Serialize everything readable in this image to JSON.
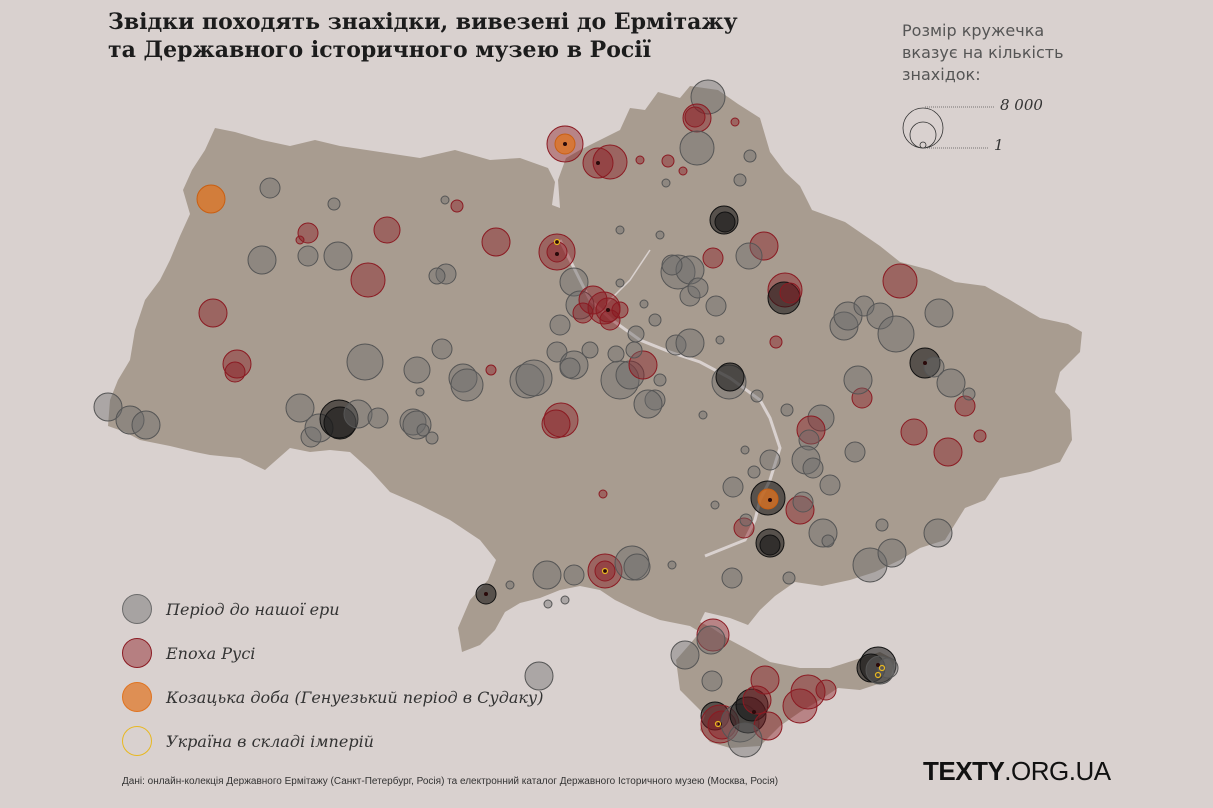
{
  "title": {
    "line1": "Звідки походять знахідки, вивезені до Ермітажу",
    "line2": "та Державного історичного музею в Росії"
  },
  "size_legend": {
    "title": "Розмір кружечка вказує на кількість знахідок:",
    "max_label": "8 000",
    "min_label": "1"
  },
  "legend": [
    {
      "label": "Період до нашої ери",
      "color": "#6b6b6b",
      "key": "bc"
    },
    {
      "label": "Епоха Русі",
      "color": "#8b1a22",
      "key": "rus"
    },
    {
      "label": "Козацька доба (Генуезький період в Судаку)",
      "color": "#e0731f",
      "key": "cossack"
    },
    {
      "label": "Україна в складі імперій",
      "color": "#e8b820",
      "key": "empire"
    }
  ],
  "source": "Дані: онлайн-колекція Державного Ермітажу (Санкт-Петербург, Росія) та електронний каталог Державного Історичного музею (Москва, Росія)",
  "brand": {
    "bold": "TEXTY",
    "rest": ".ORG.UA"
  },
  "colors": {
    "background": "#d9d1cf",
    "land": "#a89c90",
    "water": "#d9d1cf"
  }
}
